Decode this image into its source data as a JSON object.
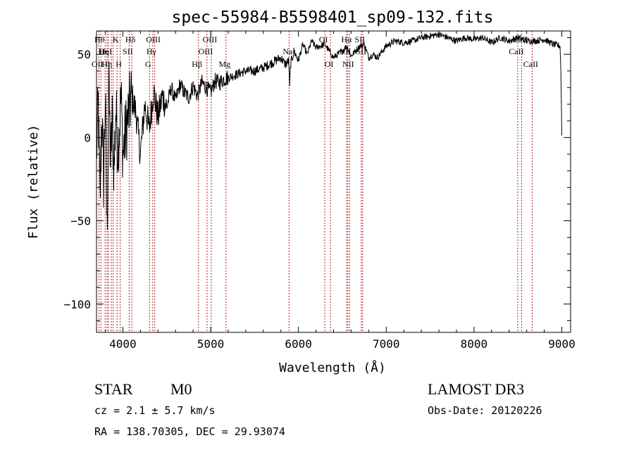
{
  "chart_data": {
    "type": "line",
    "title": "spec-55984-B5598401_sp09-132.fits",
    "xlabel": "Wavelength (Å)",
    "ylabel": "Flux (relative)",
    "xlim": [
      3700,
      9100
    ],
    "ylim": [
      -117,
      64
    ],
    "xticks": [
      4000,
      5000,
      6000,
      7000,
      8000,
      9000
    ],
    "xtick_labels": [
      "4000",
      "5000",
      "6000",
      "7000",
      "8000",
      "9000"
    ],
    "yticks": [
      -100,
      -50,
      0,
      50
    ],
    "ytick_labels": [
      "−100",
      "−50",
      "0",
      "50"
    ],
    "series": [
      {
        "name": "flux",
        "x": [
          3700,
          3720,
          3740,
          3760,
          3780,
          3800,
          3820,
          3840,
          3860,
          3880,
          3900,
          3920,
          3940,
          3960,
          3980,
          4000,
          4050,
          4100,
          4150,
          4200,
          4250,
          4300,
          4350,
          4400,
          4450,
          4500,
          4550,
          4600,
          4650,
          4700,
          4750,
          4800,
          4850,
          4900,
          4950,
          5000,
          5050,
          5100,
          5150,
          5200,
          5300,
          5400,
          5500,
          5600,
          5700,
          5800,
          5850,
          5890,
          5900,
          5910,
          5950,
          6000,
          6050,
          6100,
          6150,
          6200,
          6300,
          6400,
          6500,
          6550,
          6600,
          6650,
          6700,
          6750,
          6800,
          6850,
          6900,
          7000,
          7100,
          7200,
          7300,
          7400,
          7500,
          7600,
          7700,
          7800,
          7900,
          8000,
          8100,
          8200,
          8300,
          8400,
          8500,
          8600,
          8700,
          8800,
          8900,
          8980,
          8990,
          9000
        ],
        "y": [
          -10,
          20,
          -40,
          15,
          -25,
          25,
          -60,
          35,
          -15,
          10,
          -20,
          18,
          -5,
          5,
          25,
          -10,
          10,
          25,
          15,
          -10,
          20,
          5,
          28,
          12,
          25,
          18,
          30,
          22,
          32,
          27,
          24,
          31,
          25,
          33,
          30,
          27,
          34,
          33,
          35,
          36,
          38,
          40,
          40,
          42,
          45,
          48,
          44,
          46,
          30,
          44,
          52,
          46,
          56,
          50,
          58,
          54,
          56,
          48,
          52,
          55,
          49,
          52,
          55,
          56,
          48,
          50,
          48,
          55,
          58,
          57,
          58,
          60,
          61,
          62,
          60,
          58,
          60,
          59,
          60,
          57,
          60,
          58,
          60,
          58,
          58,
          59,
          56,
          55,
          40,
          2
        ]
      }
    ],
    "lines": [
      {
        "w": 3727,
        "row": 3,
        "label": "OII"
      },
      {
        "w": 3750,
        "row": 1,
        "label": "Hθ"
      },
      {
        "w": 3798,
        "row": 2,
        "label": "Hη"
      },
      {
        "w": 3820,
        "row": 2,
        "label": "HeI"
      },
      {
        "w": 3835,
        "row": 3,
        "label": "Hη"
      },
      {
        "w": 3869,
        "row": 2,
        "label": ""
      },
      {
        "w": 3889,
        "row": 3,
        "label": ""
      },
      {
        "w": 3934,
        "row": 1,
        "label": "K"
      },
      {
        "w": 3969,
        "row": 3,
        "label": "H"
      },
      {
        "w": 4072,
        "row": 2,
        "label": "SII"
      },
      {
        "w": 4102,
        "row": 1,
        "label": "Hδ"
      },
      {
        "w": 4304,
        "row": 3,
        "label": "G"
      },
      {
        "w": 4341,
        "row": 2,
        "label": "Hγ"
      },
      {
        "w": 4363,
        "row": 1,
        "label": "OIII"
      },
      {
        "w": 4861,
        "row": 3,
        "label": "Hβ"
      },
      {
        "w": 4959,
        "row": 2,
        "label": "OIII"
      },
      {
        "w": 5007,
        "row": 1,
        "label": "OIII"
      },
      {
        "w": 5175,
        "row": 3,
        "label": "Mg"
      },
      {
        "w": 5893,
        "row": 2,
        "label": "Na"
      },
      {
        "w": 6300,
        "row": 1,
        "label": "OI"
      },
      {
        "w": 6364,
        "row": 3,
        "label": "OI"
      },
      {
        "w": 6548,
        "row": 2,
        "label": "NII"
      },
      {
        "w": 6563,
        "row": 1,
        "label": "Hα"
      },
      {
        "w": 6583,
        "row": 3,
        "label": "NII"
      },
      {
        "w": 6716,
        "row": 1,
        "label": "SII"
      },
      {
        "w": 6731,
        "row": 2,
        "label": "SII"
      },
      {
        "w": 8498,
        "row": 2,
        "label": "CaII"
      },
      {
        "w": 8542,
        "row": 1,
        "label": "CaII"
      },
      {
        "w": 8662,
        "row": 3,
        "label": "CaII"
      }
    ]
  },
  "info": {
    "object_class": "STAR",
    "subclass": "M0",
    "cz": "cz = 2.1 ± 5.7 km/s",
    "coords": "RA = 138.70305, DEC =  29.93074",
    "survey": "LAMOST DR3",
    "obs_date": "Obs-Date: 20120226"
  },
  "colors": {
    "axis": "#000000",
    "line": "#000000",
    "marker": "#b22222"
  }
}
